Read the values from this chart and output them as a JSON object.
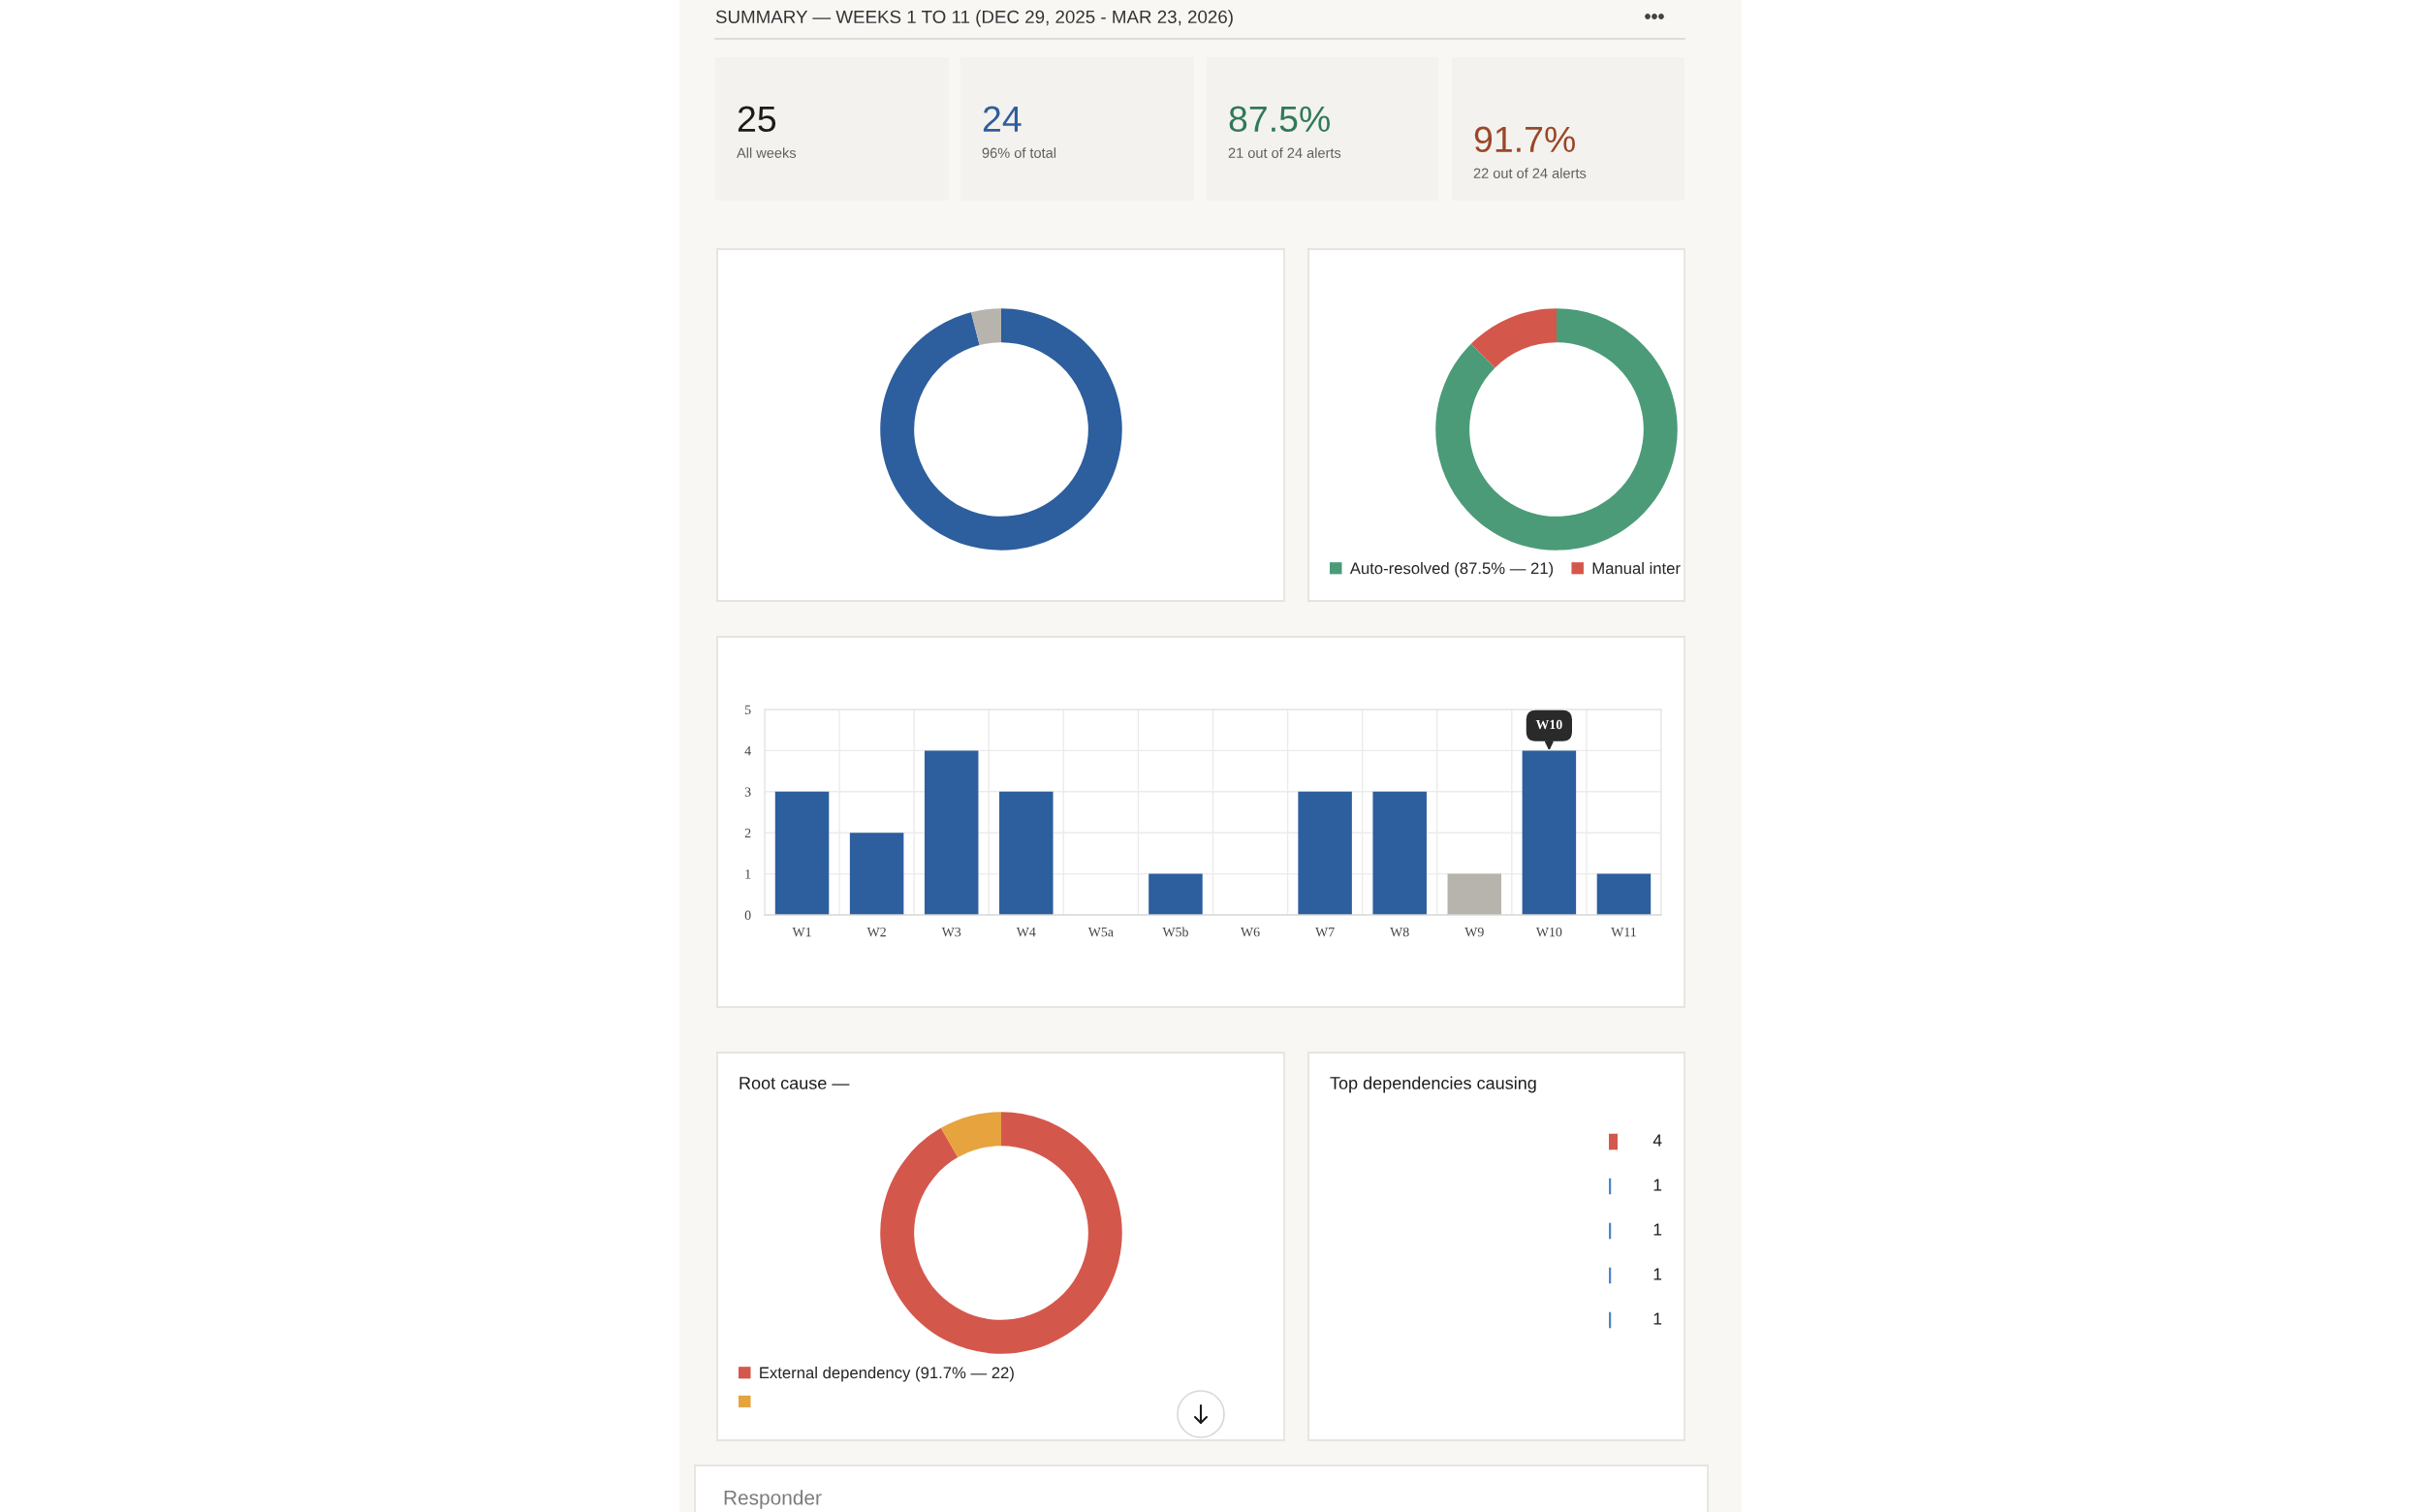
{
  "chart_data": [
    {
      "type": "other",
      "title": "SUMMARY — WEEKS 1 TO 11 (DEC 29, 2025 - MAR 23, 2026)",
      "annotations": [
        "25",
        "All weeks",
        "24",
        "96% of total",
        "87.5%",
        "21 out of 24 alerts",
        "91.7%",
        "22 out of 24 alerts"
      ],
      "colors": [
        "#1b1b1b",
        "#2d5e9e",
        "#2e7a58",
        "#9a4728"
      ]
    },
    {
      "type": "donut",
      "categories": [
        null,
        null
      ],
      "values": [
        96,
        4
      ],
      "colors": [
        "#2d5e9e",
        "#b7b4ad"
      ]
    },
    {
      "type": "donut",
      "categories": [
        "Auto-resolved (87.5% — 21)",
        "Manual inter"
      ],
      "values": [
        87.5,
        12.5
      ],
      "colors": [
        "#4b9b79",
        "#d4574c"
      ],
      "legend": "bottom"
    },
    {
      "type": "bar",
      "categories": [
        "W1",
        "W2",
        "W3",
        "W4",
        "W5a",
        "W5b",
        "W6",
        "W7",
        "W8",
        "W9",
        "W10",
        "W11"
      ],
      "series": [
        {
          "color": "#2d5e9e",
          "values": [
            3,
            2,
            4,
            3,
            0,
            1,
            0,
            3,
            3,
            0,
            4,
            1
          ]
        },
        {
          "color": "#b7b4ad",
          "values": [
            0,
            0,
            0,
            0,
            0,
            0,
            0,
            0,
            0,
            1,
            0,
            0
          ]
        }
      ],
      "stacked": true,
      "ylim": [
        0,
        5
      ],
      "yticks": [
        0,
        1,
        2,
        3,
        4,
        5
      ],
      "grid": true,
      "annotations": [
        {
          "text": "W10",
          "x": "W10",
          "y": 4
        }
      ]
    },
    {
      "type": "donut",
      "title": "Root cause —",
      "categories": [
        "External dependency (91.7% — 22)",
        null
      ],
      "values": [
        91.7,
        8.3
      ],
      "colors": [
        "#d4574c",
        "#e6a33e"
      ],
      "legend": "bottom"
    },
    {
      "type": "bar",
      "orientation": "horizontal",
      "title": "Top dependencies causing",
      "categories": [
        null,
        null,
        null,
        null,
        null
      ],
      "values": [
        4,
        1,
        1,
        1,
        1
      ],
      "colors": [
        "#d4574c",
        "#4d86c8",
        "#4d86c8",
        "#4d86c8",
        "#4d86c8"
      ],
      "data_labels": true
    },
    {
      "type": "other",
      "title": "Responder"
    }
  ]
}
